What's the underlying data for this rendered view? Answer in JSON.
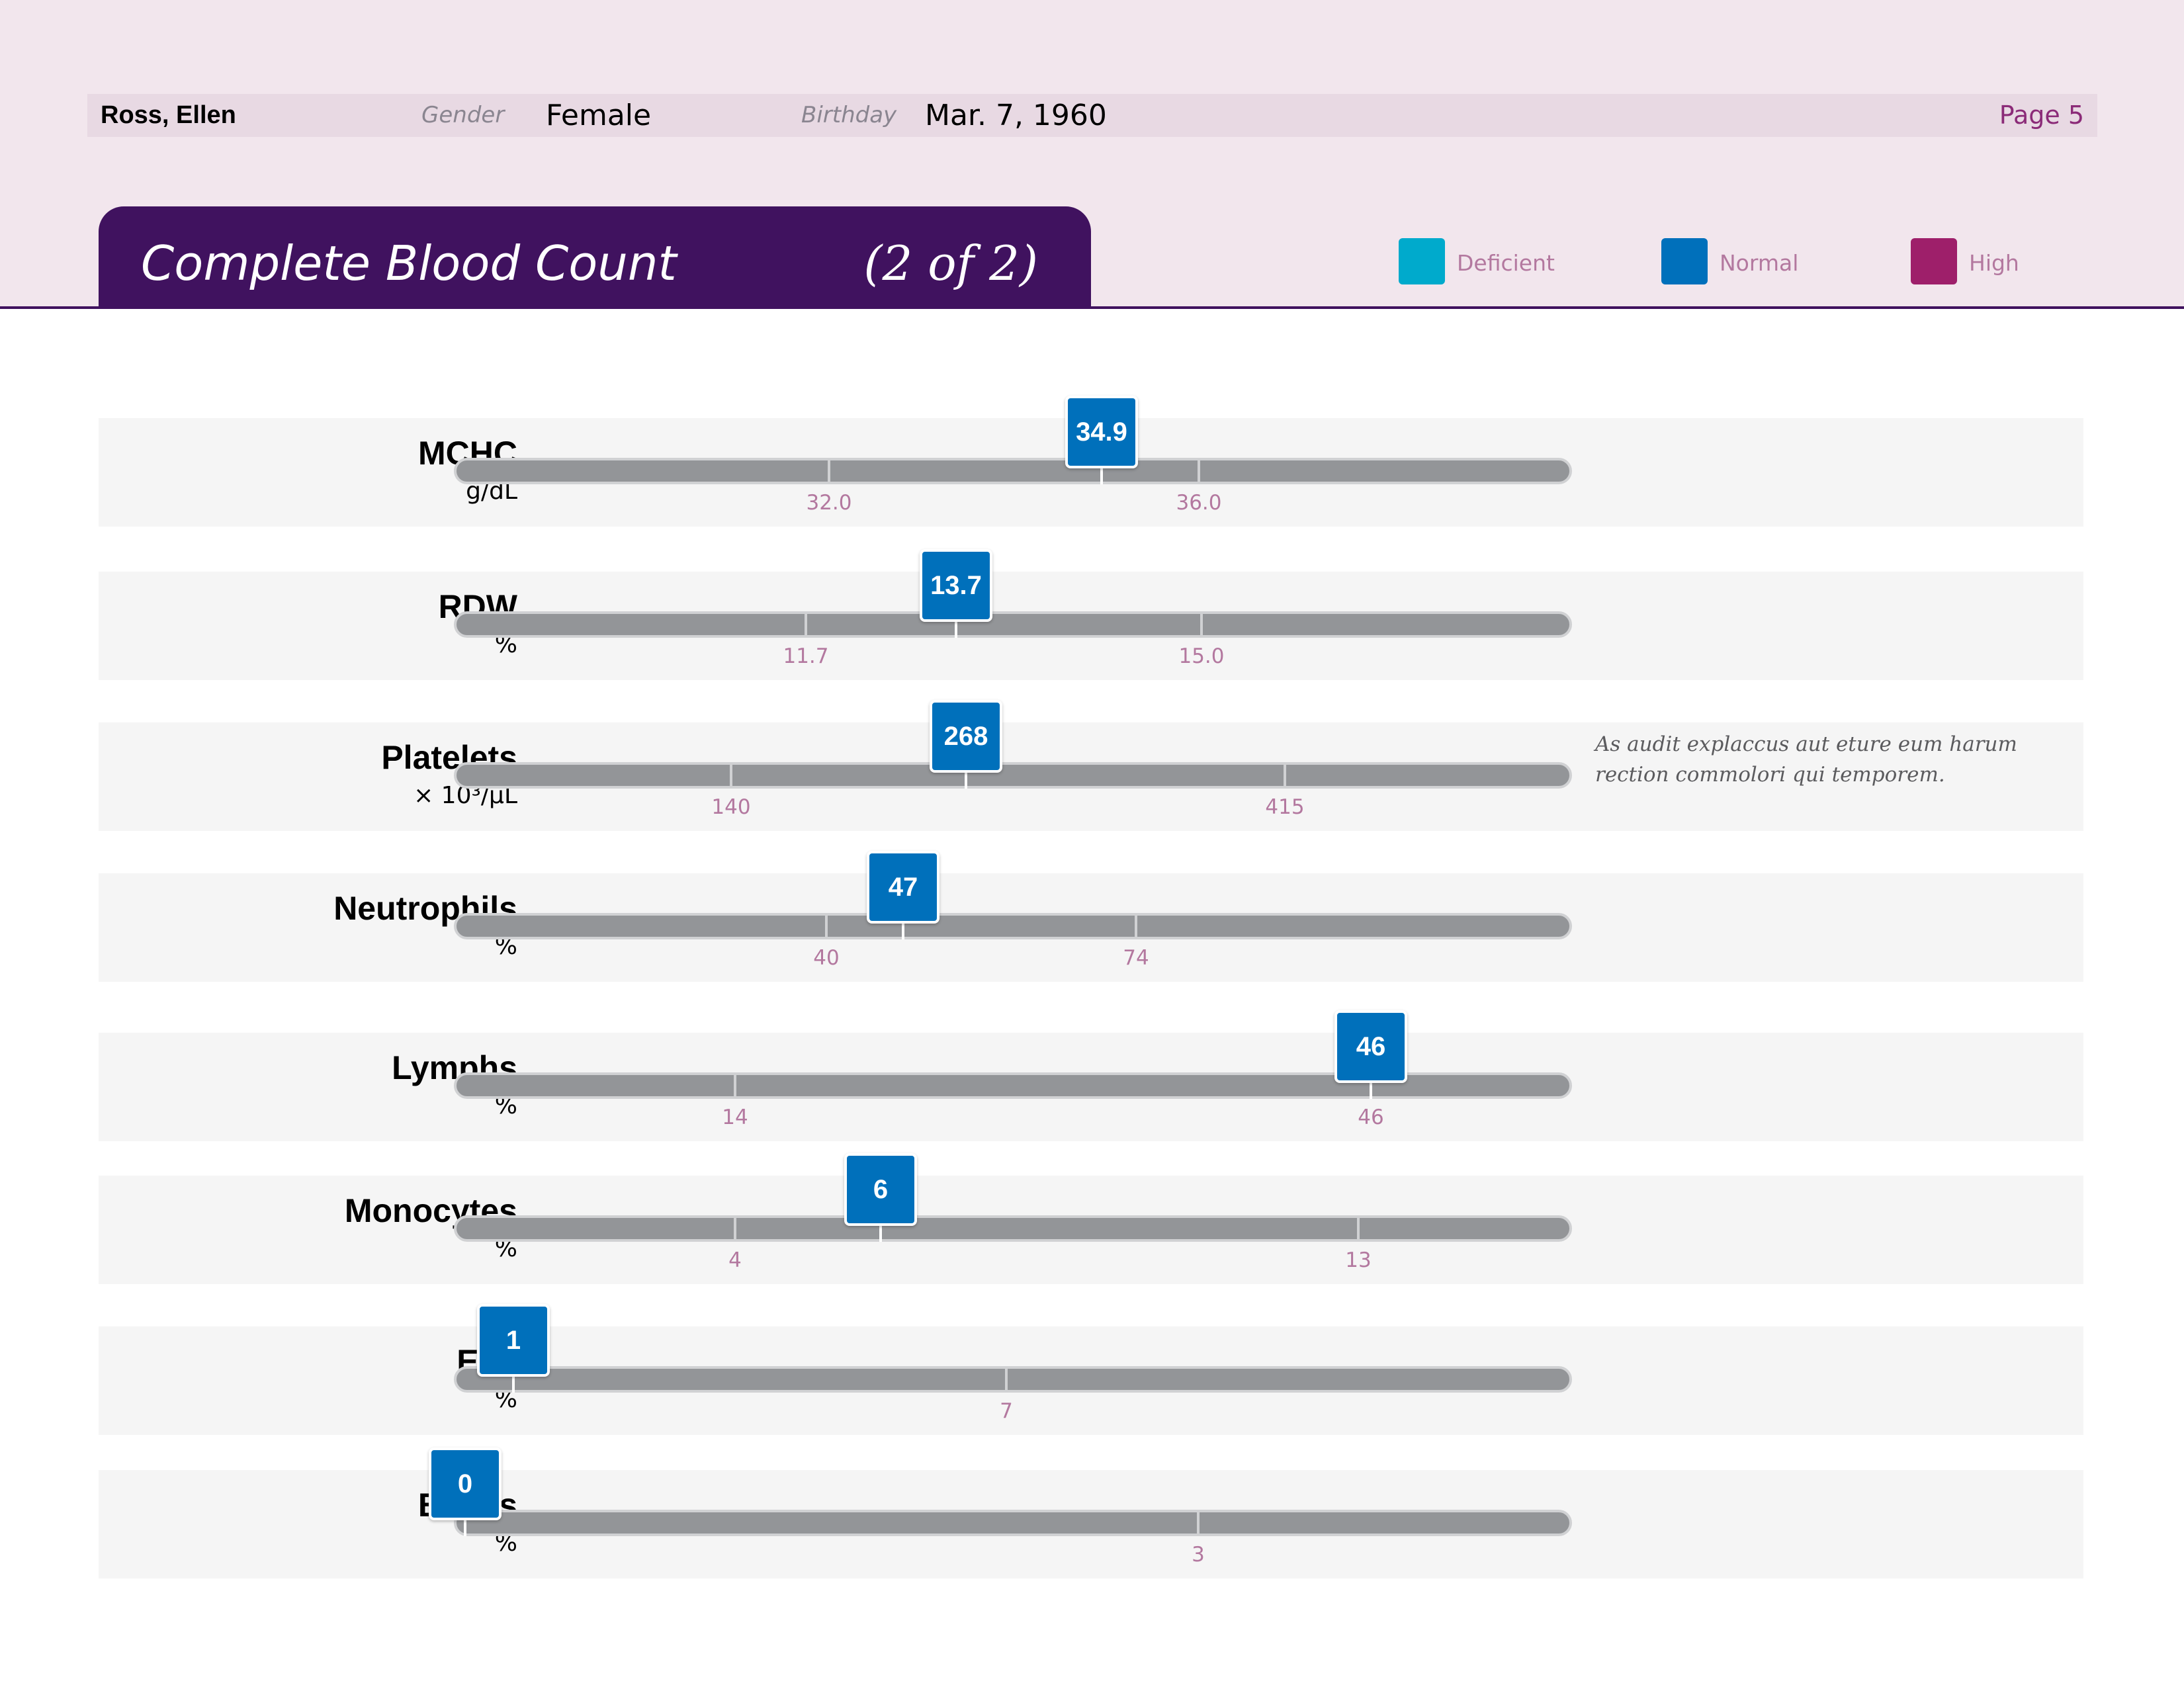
{
  "patient": {
    "name": "Ross, Ellen",
    "gender_label": "Gender",
    "gender": "Female",
    "birthday_label": "Birthday",
    "birthday": "Mar. 7, 1960",
    "page": "Page 5"
  },
  "section": {
    "title": "Complete Blood Count",
    "part": "(2 of 2)"
  },
  "legend": [
    {
      "label": "Deficient",
      "color": "#00aacc"
    },
    {
      "label": "Normal",
      "color": "#0070bb"
    },
    {
      "label": "High",
      "color": "#9e1f6a"
    }
  ],
  "colors": {
    "header_band": "#f2e6ed",
    "title_tab": "#40125f",
    "track": "#939598",
    "reference_label": "#b3789f",
    "marker_normal": "#0070bb"
  },
  "tests": [
    {
      "name": "MCHC",
      "unit": "g/dL",
      "value": "34.9",
      "value_num": 34.9,
      "ref_low": "32.0",
      "ref_low_num": 32.0,
      "ref_high": "36.0",
      "ref_high_num": 36.0,
      "status": "Normal",
      "note": ""
    },
    {
      "name": "RDW",
      "unit": "%",
      "value": "13.7",
      "value_num": 13.7,
      "ref_low": "11.7",
      "ref_low_num": 11.7,
      "ref_high": "15.0",
      "ref_high_num": 15.0,
      "status": "Normal",
      "note": ""
    },
    {
      "name": "Platelets",
      "unit": "× 10³/µL",
      "value": "268",
      "value_num": 268,
      "ref_low": "140",
      "ref_low_num": 140,
      "ref_high": "415",
      "ref_high_num": 415,
      "status": "Normal",
      "note": "As audit explaccus aut eture eum harum rection commolori qui temporem."
    },
    {
      "name": "Neutrophils",
      "unit": "%",
      "value": "47",
      "value_num": 47,
      "ref_low": "40",
      "ref_low_num": 40,
      "ref_high": "74",
      "ref_high_num": 74,
      "status": "Normal",
      "note": ""
    },
    {
      "name": "Lymphs",
      "unit": "%",
      "value": "46",
      "value_num": 46,
      "ref_low": "14",
      "ref_low_num": 14,
      "ref_high": "46",
      "ref_high_num": 46,
      "status": "Normal",
      "note": ""
    },
    {
      "name": "Monocytes",
      "unit": "%",
      "value": "6",
      "value_num": 6,
      "ref_low": "4",
      "ref_low_num": 4,
      "ref_high": "13",
      "ref_high_num": 13,
      "status": "Normal",
      "note": ""
    },
    {
      "name": "Eos",
      "unit": "%",
      "value": "1",
      "value_num": 1,
      "ref_low": "",
      "ref_low_num": null,
      "ref_high": "7",
      "ref_high_num": 7,
      "status": "Normal",
      "note": ""
    },
    {
      "name": "Basos",
      "unit": "%",
      "value": "0",
      "value_num": 0,
      "ref_low": "",
      "ref_low_num": null,
      "ref_high": "3",
      "ref_high_num": 3,
      "status": "Normal",
      "note": ""
    }
  ]
}
